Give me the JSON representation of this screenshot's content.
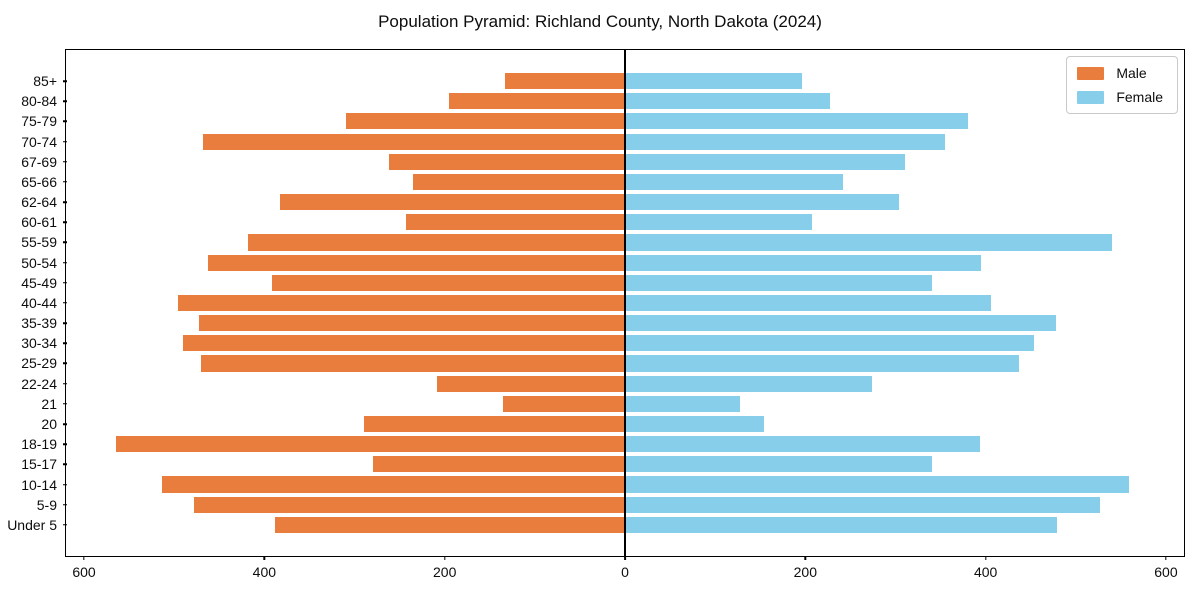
{
  "chart_data": {
    "type": "bar",
    "variant": "population-pyramid",
    "title": "Population Pyramid: Richland County, North Dakota (2024)",
    "categories": [
      "85+",
      "80-84",
      "75-79",
      "70-74",
      "67-69",
      "65-66",
      "62-64",
      "60-61",
      "55-59",
      "50-54",
      "45-49",
      "40-44",
      "35-39",
      "30-34",
      "25-29",
      "22-24",
      "21",
      "20",
      "18-19",
      "15-17",
      "10-14",
      "5-9",
      "Under 5"
    ],
    "series": [
      {
        "name": "Male",
        "side": "left",
        "color": "#e87d3e",
        "values": [
          133,
          195,
          310,
          468,
          262,
          235,
          383,
          243,
          418,
          463,
          392,
          496,
          473,
          490,
          470,
          208,
          135,
          290,
          565,
          280,
          513,
          478,
          388
        ]
      },
      {
        "name": "Female",
        "side": "right",
        "color": "#87ceeb",
        "values": [
          196,
          227,
          380,
          355,
          310,
          242,
          304,
          207,
          540,
          395,
          341,
          406,
          478,
          454,
          437,
          274,
          128,
          154,
          394,
          341,
          559,
          527,
          479
        ]
      }
    ],
    "x_axis": {
      "max_abs": 620,
      "tick_values": [
        -600,
        -400,
        -200,
        0,
        200,
        400,
        600
      ],
      "tick_labels": [
        "600",
        "400",
        "200",
        "0",
        "200",
        "400",
        "600"
      ]
    },
    "y_axis": {
      "label_side": "left"
    },
    "legend": {
      "position": "upper-right",
      "entries": [
        "Male",
        "Female"
      ]
    },
    "grid": false,
    "colors": {
      "background": "#ffffff",
      "axis": "#000000",
      "zero_line": "#000000"
    }
  }
}
